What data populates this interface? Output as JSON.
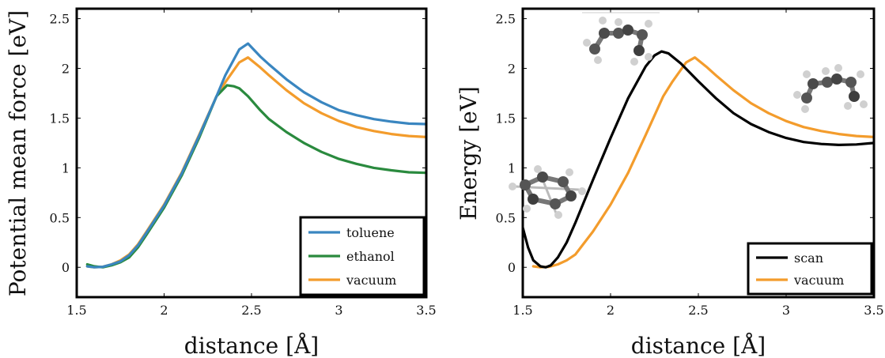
{
  "chart_data": [
    {
      "type": "line",
      "xlabel": "distance [Å]",
      "ylabel": "Potential mean force [eV]",
      "xlim": [
        1.5,
        3.5
      ],
      "ylim": [
        -0.3,
        2.6
      ],
      "xticks": [
        1.5,
        2,
        2.5,
        3,
        3.5
      ],
      "yticks": [
        0,
        0.5,
        1,
        1.5,
        2,
        2.5
      ],
      "xtick_labels": [
        "1.5",
        "2",
        "2.5",
        "3",
        "3.5"
      ],
      "ytick_labels": [
        "0",
        "0.5",
        "1",
        "1.5",
        "2",
        "2.5"
      ],
      "grid": false,
      "legend_position": "bottom-right",
      "series": [
        {
          "name": "toluene",
          "color": "#3a86c0",
          "x": [
            1.56,
            1.6,
            1.65,
            1.7,
            1.75,
            1.8,
            1.85,
            1.9,
            2.0,
            2.1,
            2.2,
            2.3,
            2.35,
            2.43,
            2.48,
            2.55,
            2.6,
            2.7,
            2.8,
            2.9,
            3.0,
            3.1,
            3.2,
            3.3,
            3.4,
            3.5
          ],
          "y": [
            0.01,
            0.0,
            0.005,
            0.03,
            0.06,
            0.12,
            0.22,
            0.35,
            0.62,
            0.94,
            1.32,
            1.72,
            1.93,
            2.19,
            2.25,
            2.12,
            2.04,
            1.89,
            1.76,
            1.66,
            1.58,
            1.53,
            1.49,
            1.465,
            1.445,
            1.44
          ]
        },
        {
          "name": "ethanol",
          "color": "#2a8a3e",
          "x": [
            1.56,
            1.6,
            1.65,
            1.7,
            1.75,
            1.8,
            1.85,
            1.9,
            2.0,
            2.1,
            2.2,
            2.3,
            2.36,
            2.4,
            2.43,
            2.48,
            2.55,
            2.6,
            2.7,
            2.8,
            2.9,
            3.0,
            3.1,
            3.2,
            3.3,
            3.4,
            3.5
          ],
          "y": [
            0.03,
            0.01,
            0.0,
            0.02,
            0.05,
            0.1,
            0.2,
            0.33,
            0.6,
            0.92,
            1.3,
            1.72,
            1.83,
            1.82,
            1.8,
            1.72,
            1.58,
            1.49,
            1.36,
            1.25,
            1.16,
            1.09,
            1.04,
            1.0,
            0.975,
            0.955,
            0.95
          ]
        },
        {
          "name": "vacuum",
          "color": "#f39c2c",
          "x": [
            1.56,
            1.6,
            1.65,
            1.7,
            1.75,
            1.8,
            1.85,
            1.9,
            2.0,
            2.1,
            2.2,
            2.3,
            2.35,
            2.43,
            2.48,
            2.55,
            2.6,
            2.7,
            2.8,
            2.9,
            3.0,
            3.1,
            3.2,
            3.3,
            3.4,
            3.5
          ],
          "y": [
            0.01,
            0.0,
            0.005,
            0.03,
            0.07,
            0.13,
            0.23,
            0.36,
            0.63,
            0.95,
            1.33,
            1.72,
            1.86,
            2.06,
            2.11,
            2.01,
            1.93,
            1.78,
            1.65,
            1.55,
            1.47,
            1.41,
            1.37,
            1.34,
            1.32,
            1.31
          ]
        }
      ]
    },
    {
      "type": "line",
      "xlabel": "distance [Å]",
      "ylabel": "Energy [eV]",
      "xlim": [
        1.5,
        3.5
      ],
      "ylim": [
        -0.3,
        2.6
      ],
      "xticks": [
        1.5,
        2,
        2.5,
        3,
        3.5
      ],
      "yticks": [
        0,
        0.5,
        1,
        1.5,
        2,
        2.5
      ],
      "xtick_labels": [
        "1.5",
        "2",
        "2.5",
        "3",
        "3.5"
      ],
      "ytick_labels": [
        "0",
        "0.5",
        "1",
        "1.5",
        "2",
        "2.5"
      ],
      "grid": false,
      "legend_position": "bottom-right",
      "series": [
        {
          "name": "scan",
          "color": "#000000",
          "x": [
            1.5,
            1.53,
            1.56,
            1.6,
            1.63,
            1.66,
            1.7,
            1.75,
            1.8,
            1.9,
            2.0,
            2.1,
            2.2,
            2.25,
            2.29,
            2.33,
            2.4,
            2.5,
            2.6,
            2.7,
            2.8,
            2.9,
            3.0,
            3.1,
            3.2,
            3.3,
            3.4,
            3.5
          ],
          "y": [
            0.4,
            0.2,
            0.07,
            0.01,
            0.0,
            0.02,
            0.1,
            0.25,
            0.45,
            0.88,
            1.3,
            1.7,
            2.02,
            2.13,
            2.17,
            2.15,
            2.05,
            1.87,
            1.7,
            1.55,
            1.44,
            1.36,
            1.3,
            1.26,
            1.24,
            1.23,
            1.235,
            1.25
          ]
        },
        {
          "name": "vacuum",
          "color": "#f39c2c",
          "x": [
            1.56,
            1.6,
            1.65,
            1.7,
            1.75,
            1.8,
            1.9,
            2.0,
            2.1,
            2.2,
            2.3,
            2.35,
            2.43,
            2.48,
            2.55,
            2.6,
            2.7,
            2.8,
            2.9,
            3.0,
            3.1,
            3.2,
            3.3,
            3.4,
            3.5
          ],
          "y": [
            0.01,
            0.0,
            0.005,
            0.03,
            0.07,
            0.13,
            0.36,
            0.63,
            0.95,
            1.33,
            1.72,
            1.86,
            2.06,
            2.11,
            2.01,
            1.93,
            1.78,
            1.65,
            1.55,
            1.47,
            1.41,
            1.37,
            1.34,
            1.32,
            1.31
          ]
        }
      ]
    }
  ]
}
